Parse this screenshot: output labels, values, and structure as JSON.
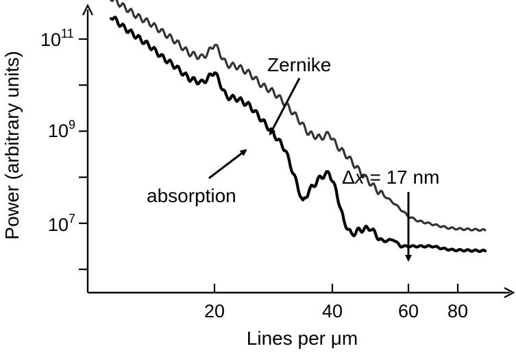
{
  "chart_data": {
    "type": "line",
    "xlabel": "Lines per μm",
    "ylabel": "Power (arbitrary units)",
    "yscale": "log",
    "xlim": [
      5,
      85
    ],
    "ylim": [
      1,
      10
    ],
    "x_ticks": [
      20,
      40,
      60,
      80
    ],
    "x_tick_labels": [
      "20",
      "40",
      "60",
      "80"
    ],
    "y_ticks": [
      4.5,
      5.5,
      6.5,
      7.5,
      8.5,
      9.5,
      10.5
    ],
    "y_tick_labels": [
      {
        "base": "10",
        "exp": "11",
        "at": 10.5
      },
      {
        "base": "10",
        "exp": "9",
        "at": 8.5
      },
      {
        "base": "10",
        "exp": "7",
        "at": 6.5
      }
    ],
    "series": [
      {
        "name": "Zernike",
        "x": [
          4,
          6,
          8,
          10,
          12,
          14,
          16,
          18,
          19,
          20,
          22,
          24,
          26,
          28,
          30,
          32,
          34,
          36,
          38,
          39.5,
          41,
          44,
          48,
          52,
          56,
          60,
          64,
          68,
          72,
          76,
          80,
          84
        ],
        "y": [
          10.4,
          10.2,
          10.0,
          9.85,
          9.65,
          9.45,
          9.2,
          9.1,
          9.2,
          9.4,
          8.95,
          8.9,
          8.75,
          8.5,
          8.35,
          8.1,
          7.8,
          7.45,
          7.35,
          7.45,
          7.2,
          6.95,
          6.55,
          6.2,
          5.95,
          5.65,
          5.55,
          5.5,
          5.45,
          5.4,
          5.38,
          5.35
        ]
      },
      {
        "name": "absorption",
        "x": [
          4,
          6,
          8,
          10,
          12,
          14,
          16,
          18,
          19,
          20,
          22,
          24,
          26,
          28,
          30,
          32,
          34,
          35,
          36,
          38,
          39.5,
          41,
          43,
          45,
          47,
          50,
          53,
          56,
          58,
          62,
          66,
          70,
          74,
          78,
          84
        ],
        "y": [
          10.0,
          9.75,
          9.55,
          9.35,
          9.1,
          8.9,
          8.65,
          8.55,
          8.65,
          8.8,
          8.25,
          8.2,
          8.05,
          7.75,
          7.45,
          7.1,
          6.35,
          5.95,
          6.2,
          6.5,
          6.6,
          6.2,
          5.55,
          5.25,
          5.35,
          5.4,
          5.1,
          5.15,
          5.0,
          5.0,
          5.0,
          5.0,
          4.95,
          4.92,
          4.9
        ]
      }
    ],
    "annotations": {
      "zernike": "Zernike",
      "absorption": "absorption",
      "resolution_prefix": "Δ",
      "resolution_var": "x",
      "resolution_suffix": " = 17 nm"
    },
    "resolution_marker_x": 60,
    "grid": false,
    "legend": "none"
  },
  "colors": {
    "zernike_line": "#333333",
    "absorption_line": "#000000",
    "axis": "#000000"
  }
}
